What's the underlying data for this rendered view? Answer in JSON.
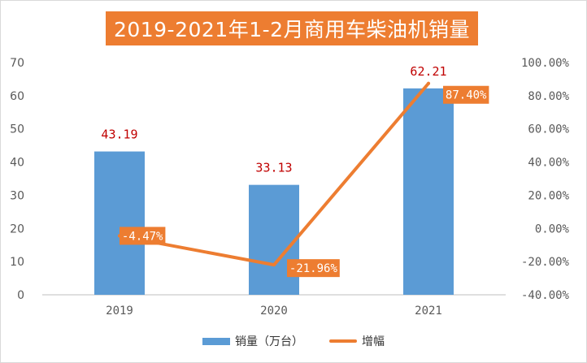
{
  "chart_data": {
    "type": "bar+line",
    "title": "2019-2021年1-2月商用车柴油机销量",
    "categories": [
      "2019",
      "2020",
      "2021"
    ],
    "series": [
      {
        "name": "销量（万台）",
        "type": "bar",
        "axis": "left",
        "values": [
          43.19,
          33.13,
          62.21
        ],
        "labels": [
          "43.19",
          "33.13",
          "62.21"
        ]
      },
      {
        "name": "增幅",
        "type": "line",
        "axis": "right",
        "values": [
          -4.47,
          -21.96,
          87.4
        ],
        "labels": [
          "-4.47%",
          "-21.96%",
          "87.40%"
        ]
      }
    ],
    "y_left": {
      "min": 0,
      "max": 70,
      "step": 10,
      "ticks": [
        "0",
        "10",
        "20",
        "30",
        "40",
        "50",
        "60",
        "70"
      ]
    },
    "y_right": {
      "min": -40,
      "max": 100,
      "step": 20,
      "ticks": [
        "-40.00%",
        "-20.00%",
        "0.00%",
        "20.00%",
        "40.00%",
        "60.00%",
        "80.00%",
        "100.00%"
      ]
    },
    "colors": {
      "bar": "#5b9bd5",
      "line": "#ed7d31",
      "bar_label": "#c00000",
      "line_label_bg": "#ed7d31",
      "line_label_text": "#ffffff",
      "axis_text": "#595959"
    },
    "legend_position": "bottom",
    "gridlines": false
  }
}
